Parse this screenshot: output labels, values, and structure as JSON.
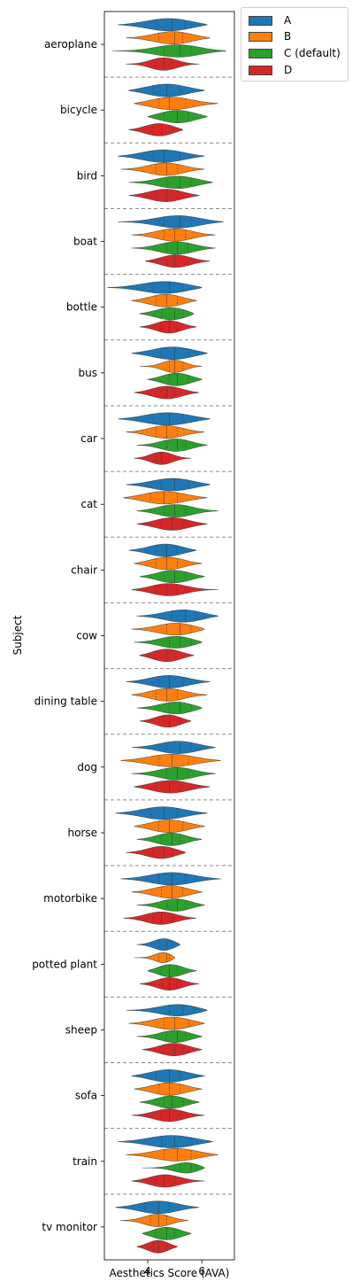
{
  "chart_data": {
    "type": "violin",
    "orientation": "horizontal",
    "xlabel": "Aesthetics Score (AVA)",
    "ylabel": "Subject",
    "xlim": [
      2.4,
      7.2
    ],
    "xticks": [
      4,
      6
    ],
    "grid": false,
    "legend_position": "outside top-right",
    "categories": [
      "aeroplane",
      "bicycle",
      "bird",
      "boat",
      "bottle",
      "bus",
      "car",
      "cat",
      "chair",
      "cow",
      "dining table",
      "dog",
      "horse",
      "motorbike",
      "potted plant",
      "sheep",
      "sofa",
      "train",
      "tv monitor"
    ],
    "series": [
      {
        "name": "A",
        "color": "#1f77b4",
        "range": [
          [
            2.9,
            6.2
          ],
          [
            3.3,
            6.1
          ],
          [
            2.9,
            6.1
          ],
          [
            2.9,
            6.8
          ],
          [
            2.5,
            6.0
          ],
          [
            3.4,
            6.2
          ],
          [
            2.9,
            6.3
          ],
          [
            3.2,
            6.3
          ],
          [
            3.3,
            5.8
          ],
          [
            3.6,
            6.6
          ],
          [
            3.2,
            6.3
          ],
          [
            3.4,
            6.5
          ],
          [
            2.8,
            6.2
          ],
          [
            3.0,
            6.7
          ],
          [
            3.6,
            5.2
          ],
          [
            3.2,
            6.2
          ],
          [
            3.4,
            6.1
          ],
          [
            2.9,
            6.4
          ],
          [
            2.8,
            5.9
          ]
        ],
        "quartiles": [
          [
            4.3,
            4.9,
            5.4
          ],
          [
            4.2,
            4.7,
            5.2
          ],
          [
            4.2,
            4.6,
            5.2
          ],
          [
            4.6,
            5.2,
            5.6
          ],
          [
            4.2,
            4.8,
            5.3
          ],
          [
            4.5,
            5.0,
            5.5
          ],
          [
            4.2,
            4.8,
            5.3
          ],
          [
            4.5,
            5.0,
            5.5
          ],
          [
            4.3,
            4.7,
            5.1
          ],
          [
            4.9,
            5.4,
            5.8
          ],
          [
            4.4,
            4.8,
            5.3
          ],
          [
            4.7,
            5.2,
            5.6
          ],
          [
            4.1,
            4.6,
            5.1
          ],
          [
            4.4,
            4.9,
            5.4
          ],
          [
            4.4,
            4.7,
            4.9
          ],
          [
            4.8,
            5.3,
            5.7
          ],
          [
            4.3,
            4.8,
            5.2
          ],
          [
            4.5,
            5.0,
            5.6
          ],
          [
            3.9,
            4.4,
            4.8
          ]
        ],
        "median": [
          4.9,
          4.7,
          4.6,
          5.2,
          4.8,
          5.0,
          4.8,
          5.0,
          4.7,
          5.4,
          4.8,
          5.2,
          4.6,
          4.9,
          4.7,
          5.3,
          4.8,
          5.0,
          4.4
        ]
      },
      {
        "name": "B",
        "color": "#ff7f0e",
        "range": [
          [
            3.2,
            6.3
          ],
          [
            3.5,
            6.6
          ],
          [
            3.0,
            6.1
          ],
          [
            3.4,
            6.5
          ],
          [
            3.4,
            5.8
          ],
          [
            3.7,
            6.0
          ],
          [
            3.2,
            6.1
          ],
          [
            3.1,
            6.2
          ],
          [
            3.5,
            6.0
          ],
          [
            3.4,
            6.1
          ],
          [
            3.4,
            6.2
          ],
          [
            3.0,
            6.7
          ],
          [
            3.5,
            6.1
          ],
          [
            3.4,
            6.0
          ],
          [
            3.5,
            5.0
          ],
          [
            3.3,
            6.1
          ],
          [
            3.5,
            6.0
          ],
          [
            3.2,
            6.6
          ],
          [
            3.0,
            5.5
          ]
        ],
        "quartiles": [
          [
            4.4,
            5.0,
            5.3
          ],
          [
            4.4,
            4.8,
            5.4
          ],
          [
            4.3,
            4.7,
            5.1
          ],
          [
            4.6,
            5.0,
            5.4
          ],
          [
            4.3,
            4.7,
            5.1
          ],
          [
            4.8,
            5.0,
            5.3
          ],
          [
            4.3,
            4.7,
            5.1
          ],
          [
            4.1,
            4.6,
            5.1
          ],
          [
            4.3,
            4.7,
            5.1
          ],
          [
            4.7,
            5.2,
            5.6
          ],
          [
            4.3,
            4.7,
            5.1
          ],
          [
            4.4,
            4.9,
            5.5
          ],
          [
            4.4,
            4.8,
            5.3
          ],
          [
            4.5,
            4.9,
            5.3
          ],
          [
            4.4,
            4.7,
            4.8
          ],
          [
            4.6,
            5.0,
            5.5
          ],
          [
            4.4,
            4.8,
            5.2
          ],
          [
            4.6,
            5.1,
            5.6
          ],
          [
            4.1,
            4.4,
            4.7
          ]
        ],
        "median": [
          5.0,
          4.8,
          4.7,
          5.0,
          4.7,
          5.0,
          4.7,
          4.6,
          4.7,
          5.2,
          4.7,
          4.9,
          4.8,
          4.9,
          4.7,
          5.0,
          4.8,
          5.1,
          4.4
        ]
      },
      {
        "name": "C (default)",
        "color": "#2ca02c",
        "range": [
          [
            2.7,
            6.9
          ],
          [
            4.0,
            6.2
          ],
          [
            3.3,
            6.4
          ],
          [
            3.4,
            6.5
          ],
          [
            3.7,
            5.7
          ],
          [
            4.0,
            6.0
          ],
          [
            3.6,
            6.2
          ],
          [
            3.6,
            6.6
          ],
          [
            3.7,
            6.1
          ],
          [
            3.5,
            6.0
          ],
          [
            3.6,
            6.0
          ],
          [
            3.4,
            6.5
          ],
          [
            3.6,
            6.0
          ],
          [
            3.6,
            6.1
          ],
          [
            4.0,
            5.8
          ],
          [
            3.6,
            6.0
          ],
          [
            3.7,
            5.9
          ],
          [
            3.8,
            6.1
          ],
          [
            3.8,
            5.6
          ]
        ],
        "quartiles": [
          [
            4.6,
            5.2,
            5.6
          ],
          [
            4.6,
            5.1,
            5.5
          ],
          [
            4.7,
            5.2,
            5.6
          ],
          [
            4.7,
            5.1,
            5.5
          ],
          [
            4.5,
            5.0,
            5.3
          ],
          [
            4.8,
            5.1,
            5.5
          ],
          [
            4.7,
            5.1,
            5.4
          ],
          [
            4.6,
            5.0,
            5.4
          ],
          [
            4.6,
            5.0,
            5.4
          ],
          [
            4.8,
            5.2,
            5.6
          ],
          [
            4.8,
            5.2,
            5.6
          ],
          [
            4.7,
            5.1,
            5.5
          ],
          [
            4.5,
            4.9,
            5.2
          ],
          [
            4.7,
            5.1,
            5.4
          ],
          [
            4.5,
            4.8,
            5.1
          ],
          [
            4.7,
            5.1,
            5.4
          ],
          [
            4.6,
            4.9,
            5.3
          ],
          [
            5.2,
            5.6,
            5.8
          ],
          [
            4.3,
            4.7,
            5.0
          ]
        ],
        "median": [
          5.2,
          5.1,
          5.2,
          5.1,
          5.0,
          5.1,
          5.1,
          5.0,
          5.0,
          5.2,
          5.2,
          5.1,
          4.9,
          5.1,
          4.8,
          5.1,
          4.9,
          5.6,
          4.7
        ]
      },
      {
        "name": "D",
        "color": "#d62728",
        "range": [
          [
            3.2,
            5.9
          ],
          [
            3.3,
            5.3
          ],
          [
            3.3,
            5.9
          ],
          [
            3.9,
            6.3
          ],
          [
            3.7,
            5.8
          ],
          [
            3.5,
            5.9
          ],
          [
            3.5,
            5.6
          ],
          [
            3.6,
            6.2
          ],
          [
            3.4,
            6.6
          ],
          [
            3.7,
            5.7
          ],
          [
            3.7,
            5.6
          ],
          [
            3.5,
            6.3
          ],
          [
            3.2,
            5.4
          ],
          [
            3.1,
            5.8
          ],
          [
            3.7,
            5.9
          ],
          [
            3.8,
            6.0
          ],
          [
            3.4,
            6.1
          ],
          [
            3.4,
            6.1
          ],
          [
            3.6,
            5.1
          ]
        ],
        "quartiles": [
          [
            4.3,
            4.6,
            4.9
          ],
          [
            4.2,
            4.5,
            4.9
          ],
          [
            4.3,
            4.7,
            5.1
          ],
          [
            4.7,
            5.0,
            5.4
          ],
          [
            4.5,
            4.8,
            5.1
          ],
          [
            4.3,
            4.7,
            5.0
          ],
          [
            4.3,
            4.5,
            4.8
          ],
          [
            4.5,
            4.9,
            5.3
          ],
          [
            4.3,
            4.7,
            5.1
          ],
          [
            4.3,
            4.7,
            5.0
          ],
          [
            4.6,
            4.8,
            5.2
          ],
          [
            4.3,
            4.8,
            5.2
          ],
          [
            4.2,
            4.6,
            4.9
          ],
          [
            4.2,
            4.5,
            4.9
          ],
          [
            4.5,
            4.8,
            5.1
          ],
          [
            4.6,
            5.0,
            5.3
          ],
          [
            4.5,
            4.8,
            5.2
          ],
          [
            4.3,
            4.6,
            5.0
          ],
          [
            4.2,
            4.4,
            4.7
          ]
        ],
        "median": [
          4.6,
          4.5,
          4.7,
          5.0,
          4.8,
          4.7,
          4.5,
          4.9,
          4.7,
          4.7,
          4.8,
          4.8,
          4.6,
          4.5,
          4.8,
          5.0,
          4.8,
          4.6,
          4.4
        ]
      }
    ]
  }
}
